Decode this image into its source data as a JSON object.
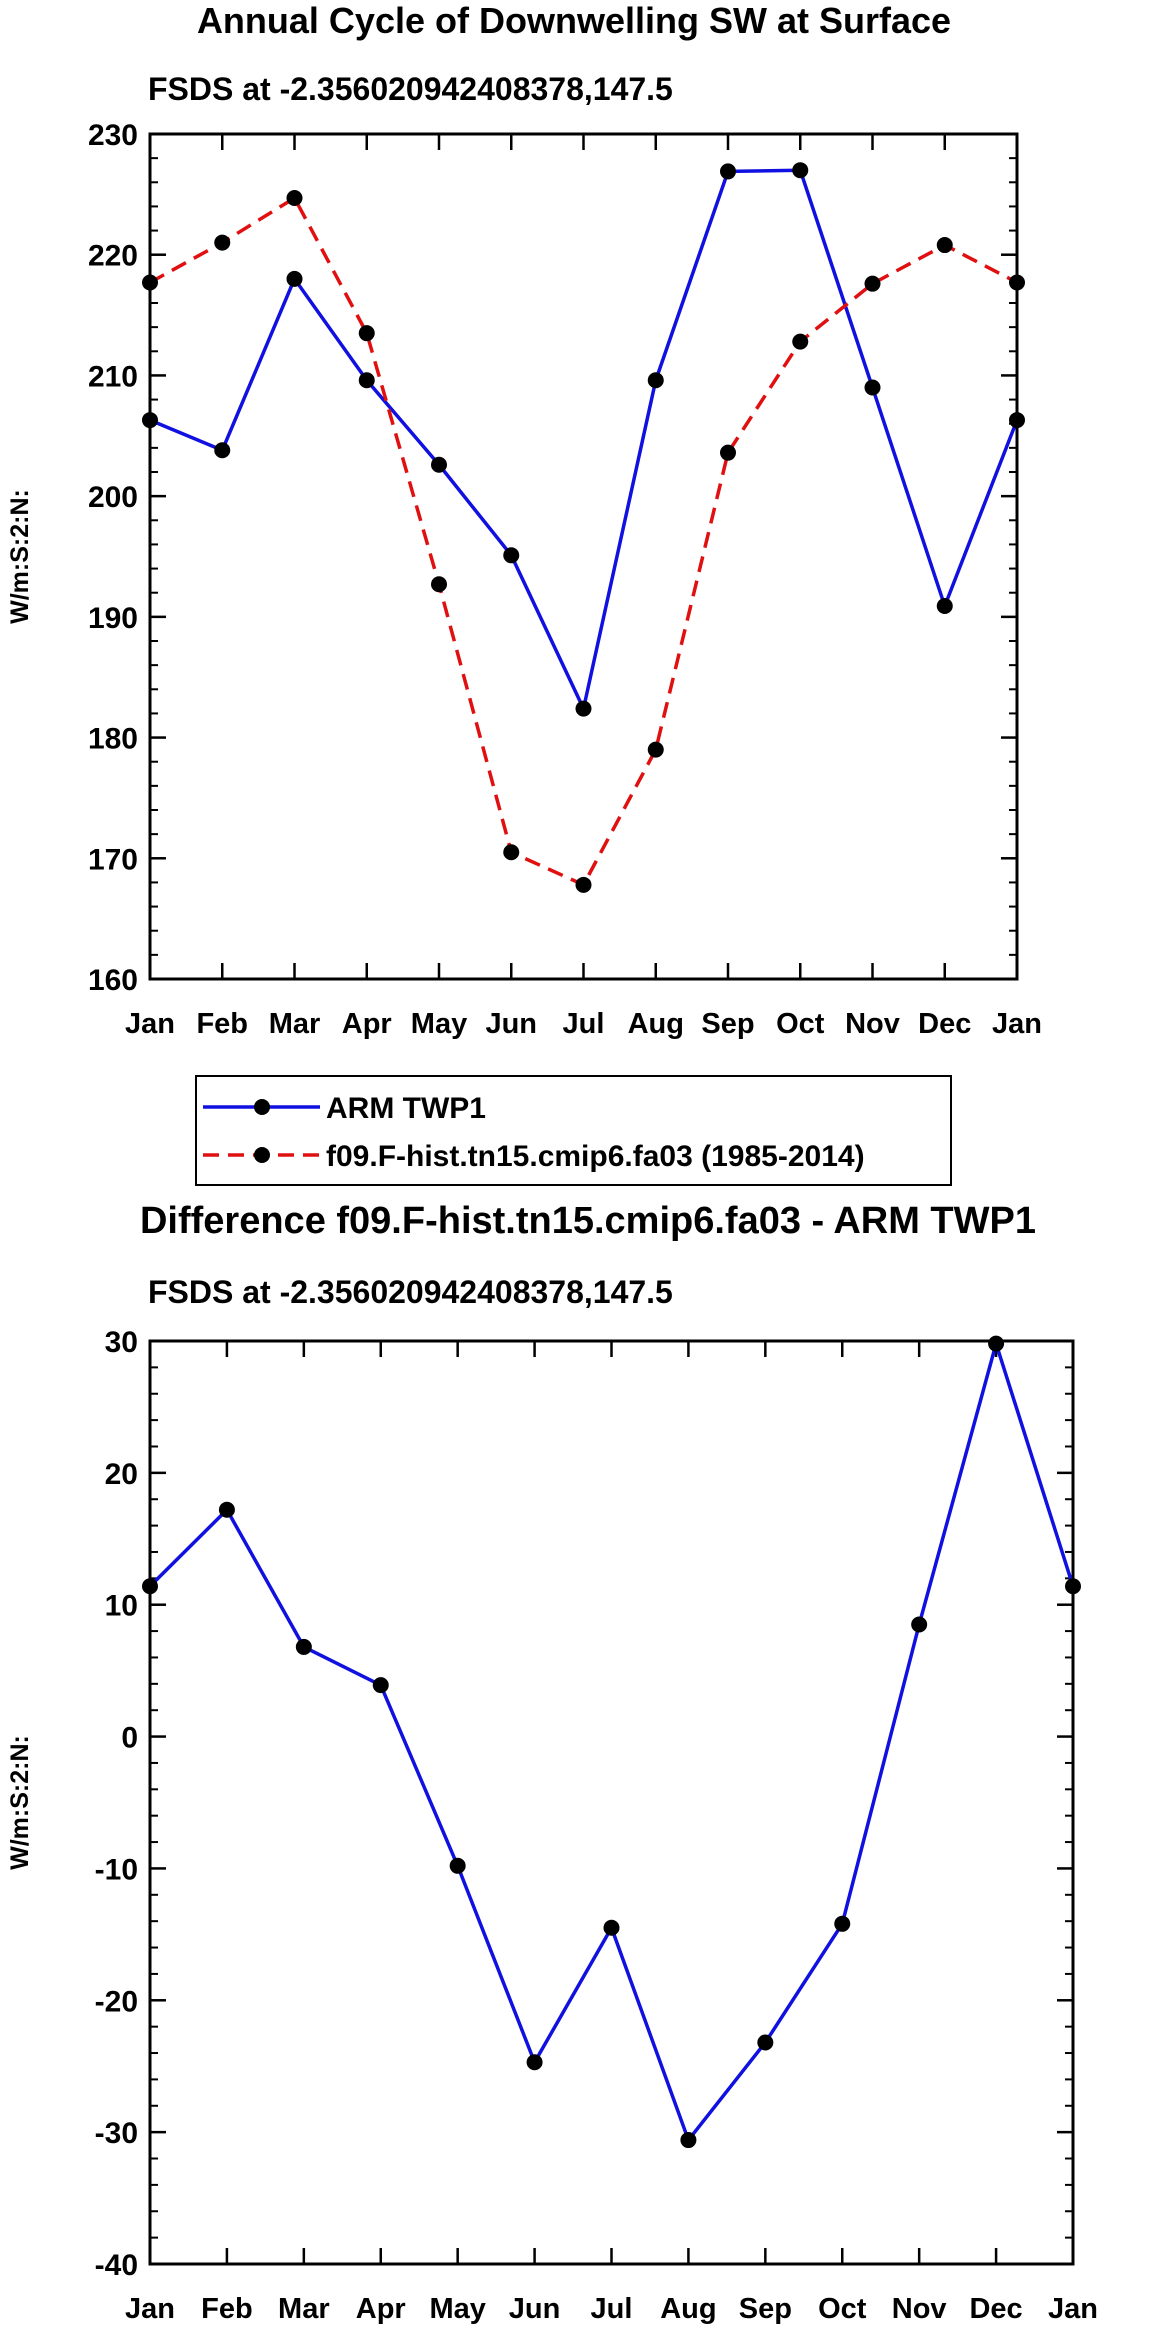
{
  "figure": {
    "top_title": "Annual Cycle of Downwelling SW at Surface",
    "top_subtitle": "FSDS at -2.356020942408378,147.5",
    "bottom_title": "Difference f09.F-hist.tn15.cmip6.fa03 - ARM TWP1",
    "bottom_subtitle": "FSDS at -2.356020942408378,147.5"
  },
  "legend": {
    "items": [
      {
        "label": "ARM TWP1",
        "color": "#1010e0",
        "dash": "solid"
      },
      {
        "label": "f09.F-hist.tn15.cmip6.fa03 (1985-2014)",
        "color": "#e01010",
        "dash": "dashed"
      }
    ]
  },
  "chart_data": [
    {
      "type": "line",
      "title": "Annual Cycle of Downwelling SW at Surface",
      "subtitle": "FSDS at -2.356020942408378,147.5",
      "xlabel": "",
      "ylabel": "W/m:S:2:N:",
      "categories": [
        "Jan",
        "Feb",
        "Mar",
        "Apr",
        "May",
        "Jun",
        "Jul",
        "Aug",
        "Sep",
        "Oct",
        "Nov",
        "Dec",
        "Jan"
      ],
      "ylim": [
        160,
        230
      ],
      "yticks": [
        160,
        170,
        180,
        190,
        200,
        210,
        220,
        230
      ],
      "series": [
        {
          "name": "ARM TWP1",
          "color": "#1010e0",
          "dash": "solid",
          "values": [
            206.3,
            203.8,
            218.0,
            209.6,
            202.6,
            195.1,
            182.4,
            209.6,
            226.9,
            227.0,
            209.0,
            190.9,
            206.3
          ]
        },
        {
          "name": "f09.F-hist.tn15.cmip6.fa03 (1985-2014)",
          "color": "#e01010",
          "dash": "dashed",
          "values": [
            217.7,
            221.0,
            224.7,
            213.5,
            192.7,
            170.5,
            167.8,
            179.0,
            203.6,
            212.8,
            217.6,
            220.8,
            217.7
          ]
        }
      ]
    },
    {
      "type": "line",
      "title": "Difference f09.F-hist.tn15.cmip6.fa03 - ARM TWP1",
      "subtitle": "FSDS at -2.356020942408378,147.5",
      "xlabel": "",
      "ylabel": "W/m:S:2:N:",
      "categories": [
        "Jan",
        "Feb",
        "Mar",
        "Apr",
        "May",
        "Jun",
        "Jul",
        "Aug",
        "Sep",
        "Oct",
        "Nov",
        "Dec",
        "Jan"
      ],
      "ylim": [
        -40,
        30
      ],
      "yticks": [
        -40,
        -30,
        -20,
        -10,
        0,
        10,
        20,
        30
      ],
      "series": [
        {
          "name": "Difference",
          "color": "#1010e0",
          "dash": "solid",
          "values": [
            11.4,
            17.2,
            6.8,
            3.9,
            -9.8,
            -24.7,
            -14.5,
            -30.6,
            -23.2,
            -14.2,
            8.5,
            29.8,
            11.4
          ]
        }
      ]
    }
  ]
}
